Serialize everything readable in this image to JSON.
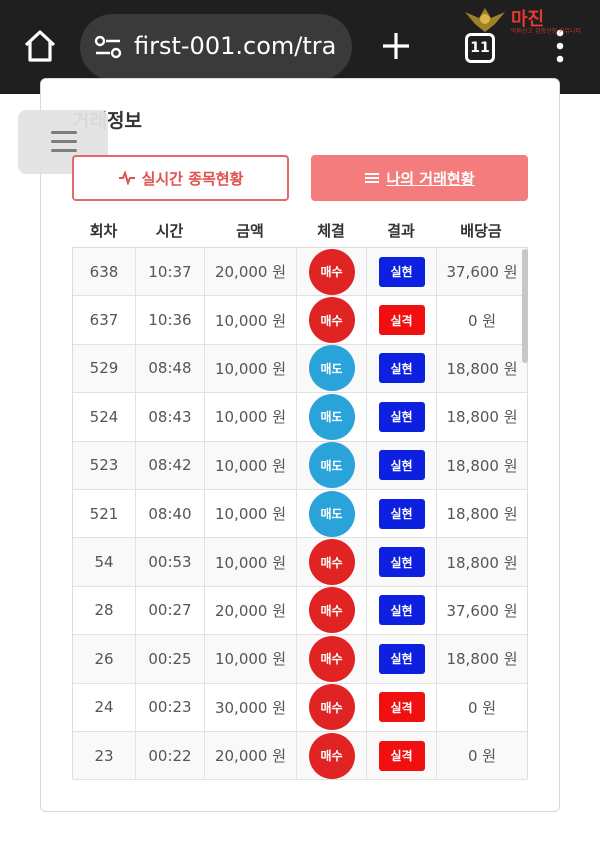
{
  "browser": {
    "url": "first-001.com/tra",
    "tab_count": "11",
    "watermark": "마진",
    "watermark_sub": "먹튀신고 검증신청 커뮤니티"
  },
  "page": {
    "section_title": "거래정보",
    "buttons": {
      "live_label": "실시간 종목현황",
      "mine_label": "나의 거래현황"
    }
  },
  "table": {
    "headers": [
      "회차",
      "시간",
      "금액",
      "체결",
      "결과",
      "배당금"
    ],
    "rows": [
      {
        "round": "638",
        "time": "10:37",
        "amount": "20,000 원",
        "exec": "매수",
        "result": "실현",
        "payout": "37,600 원"
      },
      {
        "round": "637",
        "time": "10:36",
        "amount": "10,000 원",
        "exec": "매수",
        "result": "실격",
        "payout": "0 원"
      },
      {
        "round": "529",
        "time": "08:48",
        "amount": "10,000 원",
        "exec": "매도",
        "result": "실현",
        "payout": "18,800 원"
      },
      {
        "round": "524",
        "time": "08:43",
        "amount": "10,000 원",
        "exec": "매도",
        "result": "실현",
        "payout": "18,800 원"
      },
      {
        "round": "523",
        "time": "08:42",
        "amount": "10,000 원",
        "exec": "매도",
        "result": "실현",
        "payout": "18,800 원"
      },
      {
        "round": "521",
        "time": "08:40",
        "amount": "10,000 원",
        "exec": "매도",
        "result": "실현",
        "payout": "18,800 원"
      },
      {
        "round": "54",
        "time": "00:53",
        "amount": "10,000 원",
        "exec": "매수",
        "result": "실현",
        "payout": "18,800 원"
      },
      {
        "round": "28",
        "time": "00:27",
        "amount": "20,000 원",
        "exec": "매수",
        "result": "실현",
        "payout": "37,600 원"
      },
      {
        "round": "26",
        "time": "00:25",
        "amount": "10,000 원",
        "exec": "매수",
        "result": "실현",
        "payout": "18,800 원"
      },
      {
        "round": "24",
        "time": "00:23",
        "amount": "30,000 원",
        "exec": "매수",
        "result": "실격",
        "payout": "0 원"
      },
      {
        "round": "23",
        "time": "00:22",
        "amount": "20,000 원",
        "exec": "매수",
        "result": "실격",
        "payout": "0 원"
      }
    ]
  },
  "colors": {
    "buy": "#e02424",
    "sell": "#29a3d9",
    "win": "#0d20e0",
    "lose": "#f01010",
    "accent": "#f47c7c"
  }
}
